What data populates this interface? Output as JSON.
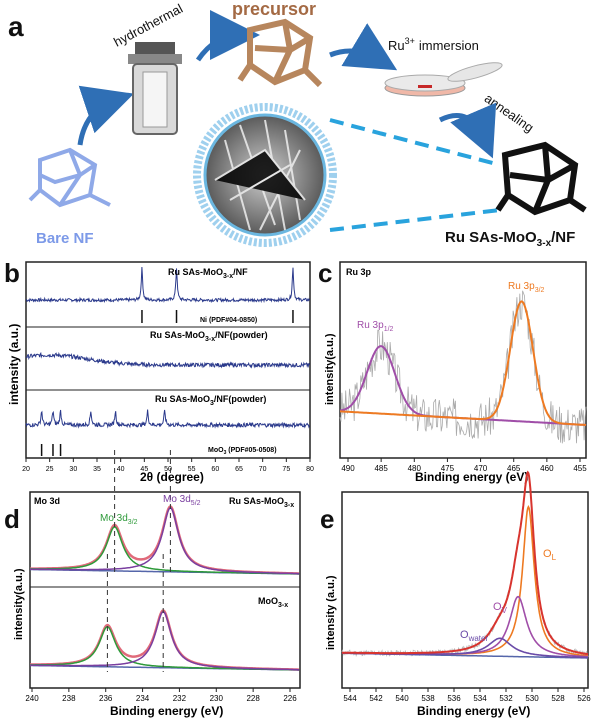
{
  "panel_a": {
    "label": "a",
    "precursor": "precursor",
    "hydrothermal": "hydrothermal",
    "ru_immersion": "Ru",
    "ru_sup": "3+",
    "immersion": "immersion",
    "annealing": "annealing",
    "bare_nf": "Bare NF",
    "product_pre": "Ru SAs-MoO",
    "product_sub": "3-x",
    "product_post": "/NF"
  },
  "chart_data": [
    {
      "panel": "b",
      "type": "line",
      "xlabel": "2θ (degree)",
      "ylabel": "intensity (a.u.)",
      "xlim": [
        20,
        80
      ],
      "x_ticks": [
        "20",
        "25",
        "30",
        "35",
        "40",
        "45",
        "50",
        "55",
        "60",
        "65",
        "70",
        "75",
        "80"
      ],
      "series": [
        {
          "name": "Ru SAs-MoO3-x/NF",
          "peaks": [
            44.5,
            51.8,
            76.4
          ]
        },
        {
          "name": "Ru SAs-MoO3-x/NF(powder)",
          "peaks": []
        },
        {
          "name": "Ru SAs-MoO3/NF(powder)",
          "peaks": [
            23.3,
            25.7,
            27.3,
            33.7,
            38.9,
            45.7,
            49.3
          ]
        }
      ],
      "references": [
        {
          "name": "Ni (PDF#04-0850)",
          "lines": [
            44.5,
            51.8,
            76.4
          ]
        },
        {
          "name": "MoO3 (PDF#05-0508)",
          "lines": [
            23.3,
            25.7,
            27.3
          ]
        }
      ]
    },
    {
      "panel": "c",
      "type": "line",
      "title": "Ru 3p",
      "xlabel": "Binding energy (eV)",
      "ylabel": "intensity(a.u.)",
      "xlim": [
        492,
        453
      ],
      "x_ticks": [
        "490",
        "485",
        "480",
        "475",
        "470",
        "465",
        "460",
        "455"
      ],
      "peaks": [
        {
          "label": "Ru 3p",
          "sub": "1/2",
          "center": 485.5,
          "height": 0.45
        },
        {
          "label": "Ru 3p",
          "sub": "3/2",
          "center": 463.2,
          "height": 0.8
        }
      ]
    },
    {
      "panel": "d",
      "type": "line",
      "title": "Mo 3d",
      "xlabel": "Binding energy (eV)",
      "ylabel": "intensity(a.u.)",
      "xlim": [
        240,
        225
      ],
      "x_ticks": [
        "240",
        "238",
        "236",
        "234",
        "232",
        "230",
        "228",
        "226"
      ],
      "sample_top": "Ru SAs-MoO",
      "sample_top_sub": "3-x",
      "sample_bottom": "MoO",
      "sample_bottom_sub": "3-x",
      "peaks_top": [
        {
          "label": "Mo 3d",
          "sub": "3/2",
          "center": 235.3
        },
        {
          "label": "Mo 3d",
          "sub": "5/2",
          "center": 232.2
        }
      ],
      "peaks_bottom": [
        {
          "center": 235.7
        },
        {
          "center": 232.6
        }
      ]
    },
    {
      "panel": "e",
      "type": "line",
      "xlabel": "Binding energy (eV)",
      "ylabel": "intensity (a.u.)",
      "xlim": [
        545,
        526
      ],
      "x_ticks": [
        "544",
        "542",
        "540",
        "538",
        "536",
        "534",
        "532",
        "530",
        "528",
        "526"
      ],
      "peaks": [
        {
          "label": "O",
          "sub": "L",
          "center": 530.6
        },
        {
          "label": "O",
          "sub": "V",
          "center": 531.4
        },
        {
          "label": "O",
          "sub": "water",
          "center": 532.8
        }
      ]
    }
  ],
  "labels": {
    "b": "b",
    "c": "c",
    "d": "d",
    "e": "e",
    "b_series1_pre": "Ru SAs-MoO",
    "b_series1_sub": "3-x",
    "b_series1_post": "/NF",
    "b_ref1": "Ni (PDF#04-0850)",
    "b_series2_pre": "Ru SAs-MoO",
    "b_series2_sub": "3-x",
    "b_series2_post": "/NF(powder)",
    "b_series3_pre": "Ru SAs-MoO",
    "b_series3_sub": "3",
    "b_series3_post": "/NF(powder)",
    "b_ref2_pre": "MoO",
    "b_ref2_sub": "3",
    "b_ref2_post": " (PDF#05-0508)",
    "c_title": "Ru 3p"
  }
}
